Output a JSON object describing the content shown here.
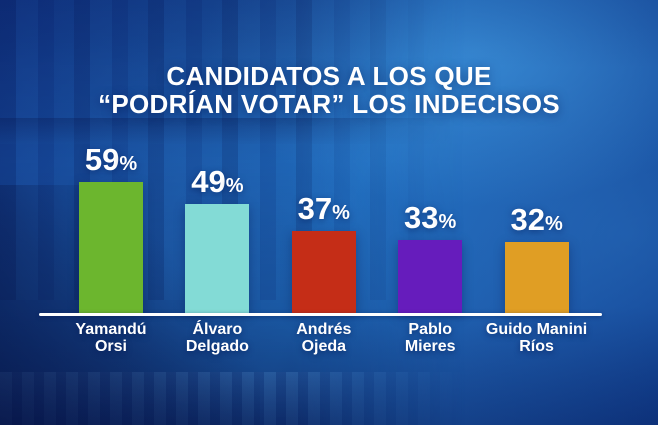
{
  "title": {
    "line1": "CANDIDATOS A LOS QUE",
    "line2": "“PODRÍAN VOTAR” LOS INDECISOS"
  },
  "chart_data": {
    "type": "bar",
    "title": "CANDIDATOS A LOS QUE “PODRÍAN VOTAR” LOS INDECISOS",
    "categories": [
      "Yamandú Orsi",
      "Álvaro Delgado",
      "Andrés Ojeda",
      "Pablo Mieres",
      "Guido Manini Ríos"
    ],
    "category_label_lines": [
      [
        "Yamandú",
        "Orsi"
      ],
      [
        "Álvaro",
        "Delgado"
      ],
      [
        "Andrés",
        "Ojeda"
      ],
      [
        "Pablo",
        "Mieres"
      ],
      [
        "Guido Manini",
        "Ríos"
      ]
    ],
    "values": [
      59,
      49,
      37,
      33,
      32
    ],
    "value_labels": [
      "59%",
      "49%",
      "37%",
      "33%",
      "32%"
    ],
    "unit": "%",
    "bar_colors": [
      "#6CB62E",
      "#83DBD6",
      "#C52D17",
      "#661CBC",
      "#E09E24"
    ],
    "ylim": [
      0,
      62
    ],
    "grid": false,
    "legend": false,
    "xlabel": "",
    "ylabel": "",
    "baseline_color": "#FFFFFF",
    "text_color": "#FFFFFF"
  },
  "palette": {
    "background_mid_blue": "#1E63B0",
    "background_bright_blue": "#2E82CF",
    "background_deep_navy": "#0B2B75"
  }
}
